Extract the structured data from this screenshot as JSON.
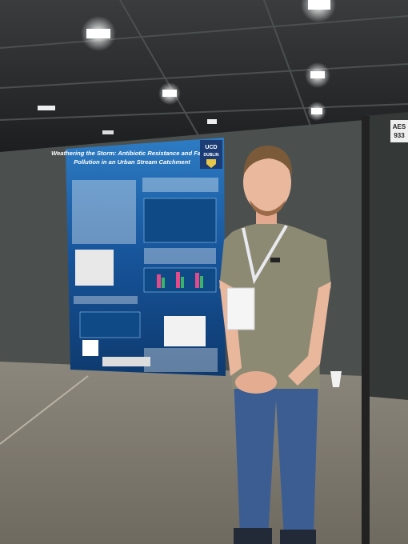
{
  "poster": {
    "title_lines": [
      "Weathering the Storm: Antibiotic Resistance and Faecal",
      "Pollution in an Urban Stream Catchment"
    ],
    "logo": [
      "UCD",
      "DUBLIN"
    ]
  },
  "board_label": [
    "AES",
    "933"
  ]
}
